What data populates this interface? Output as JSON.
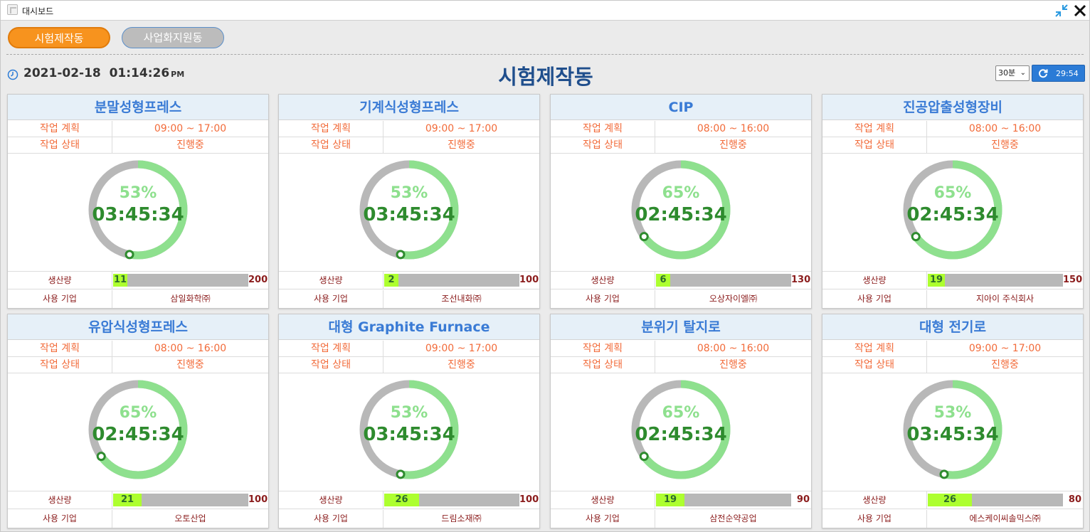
{
  "window": {
    "title": "대시보드"
  },
  "tabs": [
    {
      "label": "시험제작동",
      "active": true
    },
    {
      "label": "사업화지원동",
      "active": false
    }
  ],
  "header": {
    "date": "2021-02-18",
    "time": "01:14:26",
    "ampm": "PM",
    "title": "시험제작동",
    "interval_selected": "30분",
    "countdown": "29:54"
  },
  "labels": {
    "plan": "작업 계획",
    "status": "작업 상태",
    "production": "생산량",
    "company": "사용 기업"
  },
  "colors": {
    "accent_tab": "#f7931e",
    "title_blue": "#1f4e8c",
    "card_title": "#3a7bd5",
    "row_text": "#f26b3a",
    "gauge_track": "#b8b8b8",
    "gauge_fill": "#8ee08e",
    "gauge_dot": "#2e8b2e",
    "bar_fill": "#adff2f",
    "company_text": "#8b1c1c"
  },
  "cards": [
    {
      "name": "분말성형프레스",
      "plan": "09:00 ~ 17:00",
      "status": "진행중",
      "percent": 53,
      "percent_label": "53%",
      "elapsed": "03:45:34",
      "produced": 11,
      "target": 200,
      "produced_label": "11",
      "target_label": "200",
      "company": "삼일화학㈜"
    },
    {
      "name": "기계식성형프레스",
      "plan": "09:00 ~ 17:00",
      "status": "진행중",
      "percent": 53,
      "percent_label": "53%",
      "elapsed": "03:45:34",
      "produced": 2,
      "target": 100,
      "produced_label": "2",
      "target_label": "100",
      "company": "조선내화㈜"
    },
    {
      "name": "CIP",
      "plan": "08:00 ~ 16:00",
      "status": "진행중",
      "percent": 65,
      "percent_label": "65%",
      "elapsed": "02:45:34",
      "produced": 6,
      "target": 130,
      "produced_label": "6",
      "target_label": "130",
      "company": "오상자이엘㈜"
    },
    {
      "name": "진공압출성형장비",
      "plan": "08:00 ~ 16:00",
      "status": "진행중",
      "percent": 65,
      "percent_label": "65%",
      "elapsed": "02:45:34",
      "produced": 19,
      "target": 150,
      "produced_label": "19",
      "target_label": "150",
      "company": "지아이 주식회사"
    },
    {
      "name": "유압식성형프레스",
      "plan": "08:00 ~ 16:00",
      "status": "진행중",
      "percent": 65,
      "percent_label": "65%",
      "elapsed": "02:45:34",
      "produced": 21,
      "target": 100,
      "produced_label": "21",
      "target_label": "100",
      "company": "오토산업"
    },
    {
      "name": "대형 Graphite Furnace",
      "plan": "09:00 ~ 17:00",
      "status": "진행중",
      "percent": 53,
      "percent_label": "53%",
      "elapsed": "03:45:34",
      "produced": 26,
      "target": 100,
      "produced_label": "26",
      "target_label": "100",
      "company": "드림소재㈜"
    },
    {
      "name": "분위기 탈지로",
      "plan": "08:00 ~ 16:00",
      "status": "진행중",
      "percent": 65,
      "percent_label": "65%",
      "elapsed": "02:45:34",
      "produced": 19,
      "target": 90,
      "produced_label": "19",
      "target_label": "90",
      "company": "삼전순약공업"
    },
    {
      "name": "대형 전기로",
      "plan": "09:00 ~ 17:00",
      "status": "진행중",
      "percent": 53,
      "percent_label": "53%",
      "elapsed": "03:45:34",
      "produced": 26,
      "target": 80,
      "produced_label": "26",
      "target_label": "80",
      "company": "에스케이씨솔믹스㈜"
    }
  ]
}
